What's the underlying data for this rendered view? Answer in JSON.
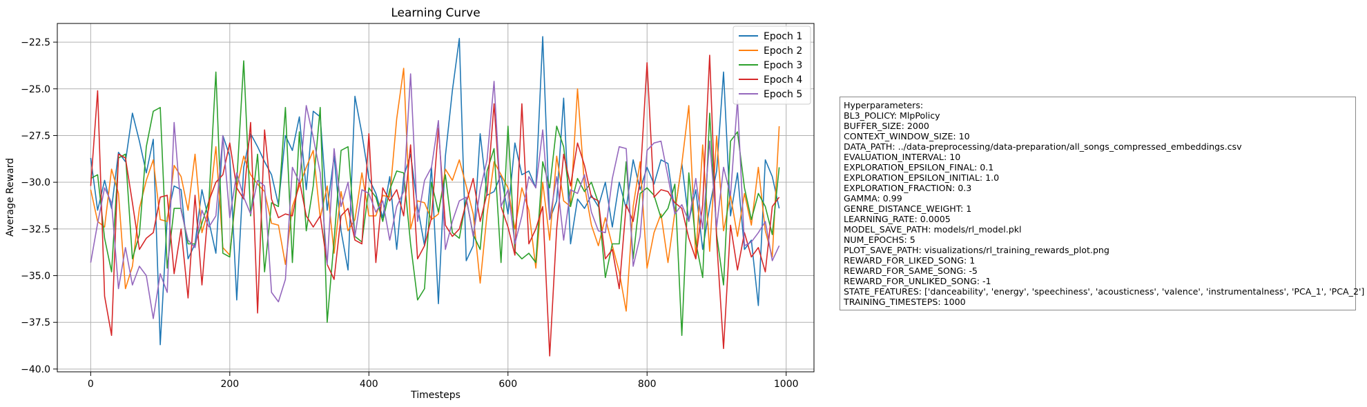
{
  "chart_data": {
    "type": "line",
    "title": "Learning Curve",
    "xlabel": "Timesteps",
    "ylabel": "Average Reward",
    "xlim": [
      -48,
      1040
    ],
    "ylim": [
      -40.15,
      -21.5
    ],
    "xticks": [
      "0",
      "200",
      "400",
      "600",
      "800",
      "1000"
    ],
    "yticks": [
      "-22.5",
      "-25.0",
      "-27.5",
      "-30.0",
      "-32.5",
      "-35.0",
      "-37.5",
      "-40.0"
    ],
    "grid": true,
    "legend_position": "top-right",
    "x": [
      0,
      10,
      20,
      30,
      40,
      50,
      60,
      70,
      80,
      90,
      100,
      110,
      120,
      130,
      140,
      150,
      160,
      170,
      180,
      190,
      200,
      210,
      220,
      230,
      240,
      250,
      260,
      270,
      280,
      290,
      300,
      310,
      320,
      330,
      340,
      350,
      360,
      370,
      380,
      390,
      400,
      410,
      420,
      430,
      440,
      450,
      460,
      470,
      480,
      490,
      500,
      510,
      520,
      530,
      540,
      550,
      560,
      570,
      580,
      590,
      600,
      610,
      620,
      630,
      640,
      650,
      660,
      670,
      680,
      690,
      700,
      710,
      720,
      730,
      740,
      750,
      760,
      770,
      780,
      790,
      800,
      810,
      820,
      830,
      840,
      850,
      860,
      870,
      880,
      890,
      900,
      910,
      920,
      930,
      940,
      950,
      960,
      970,
      980,
      990
    ],
    "series": [
      {
        "name": "Epoch 1",
        "color": "#1f77b4",
        "values": [
          -28.7,
          -31.5,
          -29.9,
          -31.4,
          -28.4,
          -28.9,
          -26.3,
          -27.8,
          -29.5,
          -27.7,
          -38.7,
          -31.9,
          -30.2,
          -30.4,
          -34.1,
          -33.3,
          -30.4,
          -32.1,
          -33.8,
          -27.5,
          -28.6,
          -36.3,
          -29.2,
          -27.4,
          -28.1,
          -28.9,
          -29.6,
          -31.2,
          -27.5,
          -28.3,
          -26.5,
          -30.4,
          -26.2,
          -26.5,
          -31.5,
          -28.6,
          -32.6,
          -34.7,
          -25.4,
          -27.4,
          -29.8,
          -30.6,
          -31.9,
          -29.7,
          -33.6,
          -29.7,
          -28.5,
          -31.3,
          -33.4,
          -29.2,
          -36.5,
          -28.6,
          -25.1,
          -22.3,
          -34.2,
          -33.4,
          -27.4,
          -30.7,
          -30.5,
          -29.6,
          -31.7,
          -27.9,
          -29.6,
          -29.4,
          -30.3,
          -22.2,
          -32.0,
          -31.0,
          -25.5,
          -33.3,
          -30.9,
          -31.4,
          -30.7,
          -31.3,
          -30.0,
          -32.4,
          -30.0,
          -31.4,
          -28.8,
          -30.4,
          -29.2,
          -30.1,
          -28.8,
          -29.0,
          -31.6,
          -29.0,
          -32.1,
          -30.4,
          -33.6,
          -31.3,
          -29.4,
          -24.1,
          -31.8,
          -29.5,
          -33.6,
          -33.1,
          -36.6,
          -28.8,
          -29.7,
          -31.4
        ]
      },
      {
        "name": "Epoch 2",
        "color": "#ff7f0e",
        "values": [
          -30.4,
          -32.1,
          -32.4,
          -29.3,
          -30.6,
          -35.7,
          -34.5,
          -31.4,
          -29.9,
          -28.8,
          -32.0,
          -32.1,
          -29.1,
          -29.7,
          -31.5,
          -28.5,
          -32.7,
          -31.4,
          -28.1,
          -33.5,
          -33.9,
          -30.3,
          -28.6,
          -29.6,
          -30.1,
          -30.5,
          -32.2,
          -32.3,
          -34.4,
          -31.3,
          -30.2,
          -29.2,
          -28.3,
          -31.9,
          -30.2,
          -33.8,
          -30.5,
          -32.6,
          -32.0,
          -29.5,
          -31.8,
          -31.8,
          -30.7,
          -30.8,
          -26.6,
          -23.9,
          -32.5,
          -31.0,
          -31.1,
          -32.0,
          -31.7,
          -29.3,
          -29.9,
          -28.8,
          -30.2,
          -31.7,
          -35.4,
          -31.7,
          -28.9,
          -29.6,
          -30.3,
          -32.5,
          -30.3,
          -31.5,
          -34.6,
          -30.0,
          -33.1,
          -28.6,
          -31.0,
          -31.3,
          -25.0,
          -30.2,
          -32.3,
          -33.4,
          -31.9,
          -33.4,
          -34.8,
          -36.9,
          -31.3,
          -28.9,
          -34.6,
          -32.7,
          -31.7,
          -34.3,
          -31.6,
          -29.0,
          -25.9,
          -34.1,
          -28.0,
          -33.7,
          -27.5,
          -32.6,
          -30.7,
          -32.9,
          -30.6,
          -32.3,
          -29.2,
          -32.6,
          -34.0,
          -27.0
        ]
      },
      {
        "name": "Epoch 3",
        "color": "#2ca02c",
        "values": [
          -29.8,
          -29.6,
          -33.0,
          -34.8,
          -28.7,
          -28.5,
          -34.1,
          -32.8,
          -28.1,
          -26.2,
          -26.0,
          -34.6,
          -31.4,
          -31.4,
          -33.3,
          -33.3,
          -32.2,
          -31.0,
          -24.1,
          -33.8,
          -34.0,
          -30.0,
          -23.5,
          -31.8,
          -28.5,
          -34.8,
          -31.1,
          -31.3,
          -26.0,
          -34.3,
          -27.3,
          -32.6,
          -30.2,
          -26.0,
          -37.5,
          -33.1,
          -28.3,
          -28.1,
          -32.9,
          -33.2,
          -30.3,
          -30.8,
          -32.1,
          -30.4,
          -29.4,
          -29.5,
          -33.3,
          -36.3,
          -35.7,
          -30.0,
          -31.6,
          -29.6,
          -32.7,
          -33.0,
          -30.9,
          -32.8,
          -33.6,
          -29.4,
          -28.2,
          -34.3,
          -27.0,
          -33.7,
          -34.1,
          -33.8,
          -34.3,
          -28.9,
          -30.3,
          -27.0,
          -28.1,
          -31.3,
          -29.8,
          -30.5,
          -30.0,
          -31.1,
          -35.1,
          -33.3,
          -33.3,
          -28.9,
          -34.1,
          -30.6,
          -30.3,
          -30.7,
          -31.9,
          -31.4,
          -30.1,
          -38.2,
          -29.5,
          -33.2,
          -35.1,
          -26.3,
          -32.8,
          -35.5,
          -27.8,
          -27.3,
          -30.3,
          -32.0,
          -30.6,
          -31.3,
          -32.8,
          -29.2
        ]
      },
      {
        "name": "Epoch 4",
        "color": "#d62728",
        "values": [
          -30.2,
          -25.1,
          -36.1,
          -38.2,
          -28.5,
          -28.7,
          -31.1,
          -33.6,
          -33.0,
          -32.7,
          -30.8,
          -30.7,
          -34.9,
          -32.5,
          -36.2,
          -30.7,
          -35.5,
          -31.0,
          -30.0,
          -29.6,
          -27.9,
          -30.3,
          -30.9,
          -26.8,
          -37.0,
          -27.2,
          -30.9,
          -31.9,
          -31.7,
          -31.8,
          -29.9,
          -31.8,
          -32.4,
          -31.8,
          -34.4,
          -35.2,
          -31.8,
          -31.4,
          -33.1,
          -33.3,
          -27.4,
          -34.3,
          -30.3,
          -31.0,
          -30.4,
          -31.8,
          -28.0,
          -34.1,
          -33.4,
          -31.9,
          -27.1,
          -32.3,
          -32.9,
          -32.5,
          -31.1,
          -29.8,
          -32.1,
          -30.6,
          -25.8,
          -31.3,
          -32.4,
          -33.9,
          -25.8,
          -33.3,
          -32.5,
          -31.3,
          -39.3,
          -32.5,
          -28.5,
          -30.2,
          -27.9,
          -29.1,
          -30.8,
          -31.0,
          -34.1,
          -33.6,
          -35.7,
          -31.2,
          -32.1,
          -29.9,
          -23.6,
          -30.8,
          -30.4,
          -30.5,
          -31.1,
          -31.4,
          -33.0,
          -34.1,
          -31.2,
          -23.2,
          -33.1,
          -38.9,
          -32.3,
          -34.7,
          -32.7,
          -34.0,
          -33.5,
          -34.8,
          -31.3,
          -30.8
        ]
      },
      {
        "name": "Epoch 5",
        "color": "#9467bd",
        "values": [
          -34.3,
          -32.2,
          -30.3,
          -31.1,
          -35.7,
          -33.5,
          -35.5,
          -34.5,
          -35.0,
          -37.3,
          -34.9,
          -35.9,
          -26.8,
          -31.5,
          -33.1,
          -33.5,
          -31.5,
          -32.4,
          -31.8,
          -27.5,
          -31.9,
          -29.5,
          -30.8,
          -31.7,
          -29.9,
          -30.2,
          -35.9,
          -36.4,
          -35.2,
          -29.2,
          -30.0,
          -25.9,
          -27.6,
          -29.5,
          -34.4,
          -28.2,
          -31.3,
          -30.0,
          -32.9,
          -30.4,
          -30.6,
          -31.6,
          -31.0,
          -33.1,
          -31.3,
          -30.5,
          -24.2,
          -32.1,
          -29.9,
          -29.2,
          -26.7,
          -33.6,
          -32.1,
          -31.0,
          -30.8,
          -32.9,
          -30.4,
          -28.8,
          -24.6,
          -31.3,
          -30.4,
          -33.3,
          -31.8,
          -29.7,
          -30.3,
          -27.2,
          -32.0,
          -29.7,
          -33.1,
          -30.4,
          -30.6,
          -29.6,
          -31.6,
          -32.6,
          -32.7,
          -29.8,
          -28.1,
          -28.2,
          -34.5,
          -32.9,
          -28.3,
          -27.9,
          -27.8,
          -29.7,
          -31.7,
          -31.2,
          -32.1,
          -29.8,
          -32.5,
          -27.8,
          -32.4,
          -29.2,
          -30.7,
          -25.6,
          -33.4,
          -33.2,
          -32.7,
          -32.1,
          -34.2,
          -33.4
        ]
      }
    ]
  },
  "hyperparameters": {
    "title": "Hyperparameters:",
    "lines": [
      "BL3_POLICY: MlpPolicy",
      "BUFFER_SIZE: 2000",
      "CONTEXT_WINDOW_SIZE: 10",
      "DATA_PATH: ../data-preprocessing/data-preparation/all_songs_compressed_embeddings.csv",
      "EVALUATION_INTERVAL: 10",
      "EXPLORATION_EPSILON_FINAL: 0.1",
      "EXPLORATION_EPSILON_INITIAL: 1.0",
      "EXPLORATION_FRACTION: 0.3",
      "GAMMA: 0.99",
      "GENRE_DISTANCE_WEIGHT: 1",
      "LEARNING_RATE: 0.0005",
      "MODEL_SAVE_PATH: models/rl_model.pkl",
      "NUM_EPOCHS: 5",
      "PLOT_SAVE_PATH: visualizations/rl_training_rewards_plot.png",
      "REWARD_FOR_LIKED_SONG: 1",
      "REWARD_FOR_SAME_SONG: -5",
      "REWARD_FOR_UNLIKED_SONG: -1",
      "STATE_FEATURES: ['danceability', 'energy', 'speechiness', 'acousticness', 'valence', 'instrumentalness', 'PCA_1', 'PCA_2']",
      "TRAINING_TIMESTEPS: 1000"
    ]
  }
}
